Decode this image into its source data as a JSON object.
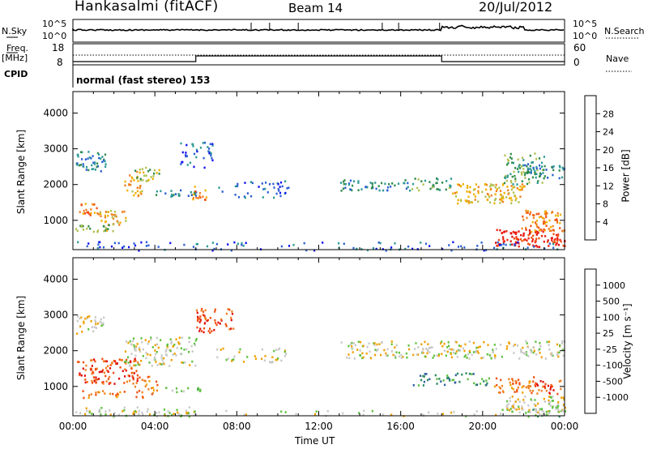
{
  "header": {
    "station": "Hankasalmi (fitACF)",
    "beam": "Beam 14",
    "date": "20/Jul/2012",
    "cpid_label": "CPID",
    "cpid_text": "normal (fast stereo) 153"
  },
  "noise_panel": {
    "left_label": "N.Sky",
    "right_label": "N.Search",
    "left_ticks": [
      "10^5",
      "10^0"
    ],
    "right_ticks": [
      "10^5",
      "10^0"
    ]
  },
  "freq_panel": {
    "left_label_line1": "Freq.",
    "left_label_line2": "[MHz]",
    "right_label": "Nave",
    "left_ticks": [
      "18",
      "8"
    ],
    "right_ticks": [
      "60",
      "0"
    ]
  },
  "chart_data": [
    {
      "type": "heatmap",
      "name": "power",
      "ylabel": "Slant Range [km]",
      "ylim": [
        180,
        4600
      ],
      "yticks": [
        1000,
        2000,
        3000,
        4000
      ],
      "xlim_hours": [
        0,
        24
      ],
      "colorbar": {
        "label": "Power [dB]",
        "ticks": [
          "4",
          "8",
          "12",
          "16",
          "20",
          "24",
          "28"
        ],
        "colors": [
          "#1010f0",
          "#2a5fd0",
          "#2e9a96",
          "#2f8c4a",
          "#b0c050",
          "#f0b000",
          "#f08020",
          "#f05010",
          "#f02010",
          "#e01010"
        ]
      },
      "bands": [
        {
          "t0": 0.1,
          "t1": 1.6,
          "r0": 2400,
          "r1": 2950,
          "level": 2,
          "dens": 0.75
        },
        {
          "t0": 0.2,
          "t1": 1.2,
          "r0": 1150,
          "r1": 1500,
          "level": 6,
          "dens": 0.8
        },
        {
          "t0": 1.2,
          "t1": 2.6,
          "r0": 850,
          "r1": 1300,
          "level": 5,
          "dens": 0.7
        },
        {
          "t0": 0.1,
          "t1": 2.0,
          "r0": 700,
          "r1": 900,
          "level": 4,
          "dens": 0.8
        },
        {
          "t0": 2.5,
          "t1": 3.4,
          "r0": 1700,
          "r1": 2400,
          "level": 5,
          "dens": 0.6
        },
        {
          "t0": 3.0,
          "t1": 4.5,
          "r0": 2100,
          "r1": 2500,
          "level": 4,
          "dens": 0.55
        },
        {
          "t0": 4.0,
          "t1": 6.0,
          "r0": 1650,
          "r1": 1900,
          "level": 2,
          "dens": 0.55
        },
        {
          "t0": 5.8,
          "t1": 6.5,
          "r0": 1500,
          "r1": 2000,
          "level": 6,
          "dens": 0.55
        },
        {
          "t0": 5.2,
          "t1": 6.8,
          "r0": 2500,
          "r1": 3200,
          "level": 1,
          "dens": 0.45
        },
        {
          "t0": 7.0,
          "t1": 10.5,
          "r0": 1650,
          "r1": 2150,
          "level": 1,
          "dens": 0.3
        },
        {
          "t0": 13.0,
          "t1": 16.5,
          "r0": 1850,
          "r1": 2150,
          "level": 2,
          "dens": 0.65
        },
        {
          "t0": 16.5,
          "t1": 18.5,
          "r0": 1850,
          "r1": 2200,
          "level": 3,
          "dens": 0.6
        },
        {
          "t0": 18.5,
          "t1": 22.0,
          "r0": 1500,
          "r1": 2050,
          "level": 5,
          "dens": 0.75
        },
        {
          "t0": 21.0,
          "t1": 23.0,
          "r0": 2000,
          "r1": 2900,
          "level": 3,
          "dens": 0.55
        },
        {
          "t0": 22.0,
          "t1": 24.0,
          "r0": 2200,
          "r1": 2600,
          "level": 2,
          "dens": 0.7
        },
        {
          "t0": 20.6,
          "t1": 24.0,
          "r0": 280,
          "r1": 780,
          "level": 8,
          "dens": 0.9
        },
        {
          "t0": 21.8,
          "t1": 24.0,
          "r0": 700,
          "r1": 1300,
          "level": 6,
          "dens": 0.7
        },
        {
          "t0": 0.0,
          "t1": 24.0,
          "r0": 180,
          "r1": 420,
          "level": 1,
          "dens": 0.25
        }
      ]
    },
    {
      "type": "heatmap",
      "name": "velocity",
      "ylabel": "Slant Range [km]",
      "ylim": [
        180,
        4600
      ],
      "yticks": [
        1000,
        2000,
        3000,
        4000
      ],
      "xlim_hours": [
        0,
        24
      ],
      "xticks": [
        "00:00",
        "04:00",
        "08:00",
        "12:00",
        "16:00",
        "20:00",
        "00:00"
      ],
      "xlabel": "Time UT",
      "colorbar": {
        "label": "Velocity [m s⁻¹]",
        "ticks": [
          "1000",
          "500",
          "100",
          "25",
          "-25",
          "-100",
          "-500",
          "-1000"
        ],
        "colors": [
          "#2040c0",
          "#2f5fa0",
          "#2a8a5a",
          "#60c040",
          "#c8c8c8",
          "#f0a000",
          "#f08020",
          "#f05010",
          "#e01010"
        ]
      },
      "bands": [
        {
          "t0": 0.1,
          "t1": 1.5,
          "r0": 2500,
          "r1": 3000,
          "level": 4,
          "dens": 0.6
        },
        {
          "t0": 0.2,
          "t1": 3.3,
          "r0": 1100,
          "r1": 1800,
          "level": 7,
          "dens": 0.7
        },
        {
          "t0": 0.2,
          "t1": 2.5,
          "r0": 700,
          "r1": 900,
          "level": 6,
          "dens": 0.6
        },
        {
          "t0": 3.0,
          "t1": 4.2,
          "r0": 700,
          "r1": 1300,
          "level": 6,
          "dens": 0.45
        },
        {
          "t0": 2.5,
          "t1": 6.0,
          "r0": 1600,
          "r1": 2400,
          "level": 4,
          "dens": 0.55
        },
        {
          "t0": 4.5,
          "t1": 6.5,
          "r0": 850,
          "r1": 1000,
          "level": 3,
          "dens": 0.6
        },
        {
          "t0": 6.0,
          "t1": 7.8,
          "r0": 2500,
          "r1": 3200,
          "level": 7,
          "dens": 0.6
        },
        {
          "t0": 7.0,
          "t1": 10.5,
          "r0": 1700,
          "r1": 2100,
          "level": 4,
          "dens": 0.35
        },
        {
          "t0": 13.0,
          "t1": 24.0,
          "r0": 1800,
          "r1": 2300,
          "level": 4,
          "dens": 0.55
        },
        {
          "t0": 16.5,
          "t1": 20.5,
          "r0": 1050,
          "r1": 1400,
          "level": 2,
          "dens": 0.45
        },
        {
          "t0": 20.5,
          "t1": 22.5,
          "r0": 850,
          "r1": 1300,
          "level": 6,
          "dens": 0.65
        },
        {
          "t0": 22.2,
          "t1": 23.8,
          "r0": 800,
          "r1": 1200,
          "level": 7,
          "dens": 0.6
        },
        {
          "t0": 20.8,
          "t1": 24.0,
          "r0": 300,
          "r1": 750,
          "level": 4,
          "dens": 0.8
        },
        {
          "t0": 22.0,
          "t1": 24.0,
          "r0": 180,
          "r1": 400,
          "level": 3,
          "dens": 0.6
        },
        {
          "t0": 0.0,
          "t1": 6.0,
          "r0": 180,
          "r1": 450,
          "level": 4,
          "dens": 0.45
        },
        {
          "t0": 0.0,
          "t1": 24.0,
          "r0": 180,
          "r1": 350,
          "level": 4,
          "dens": 0.15
        }
      ]
    }
  ]
}
